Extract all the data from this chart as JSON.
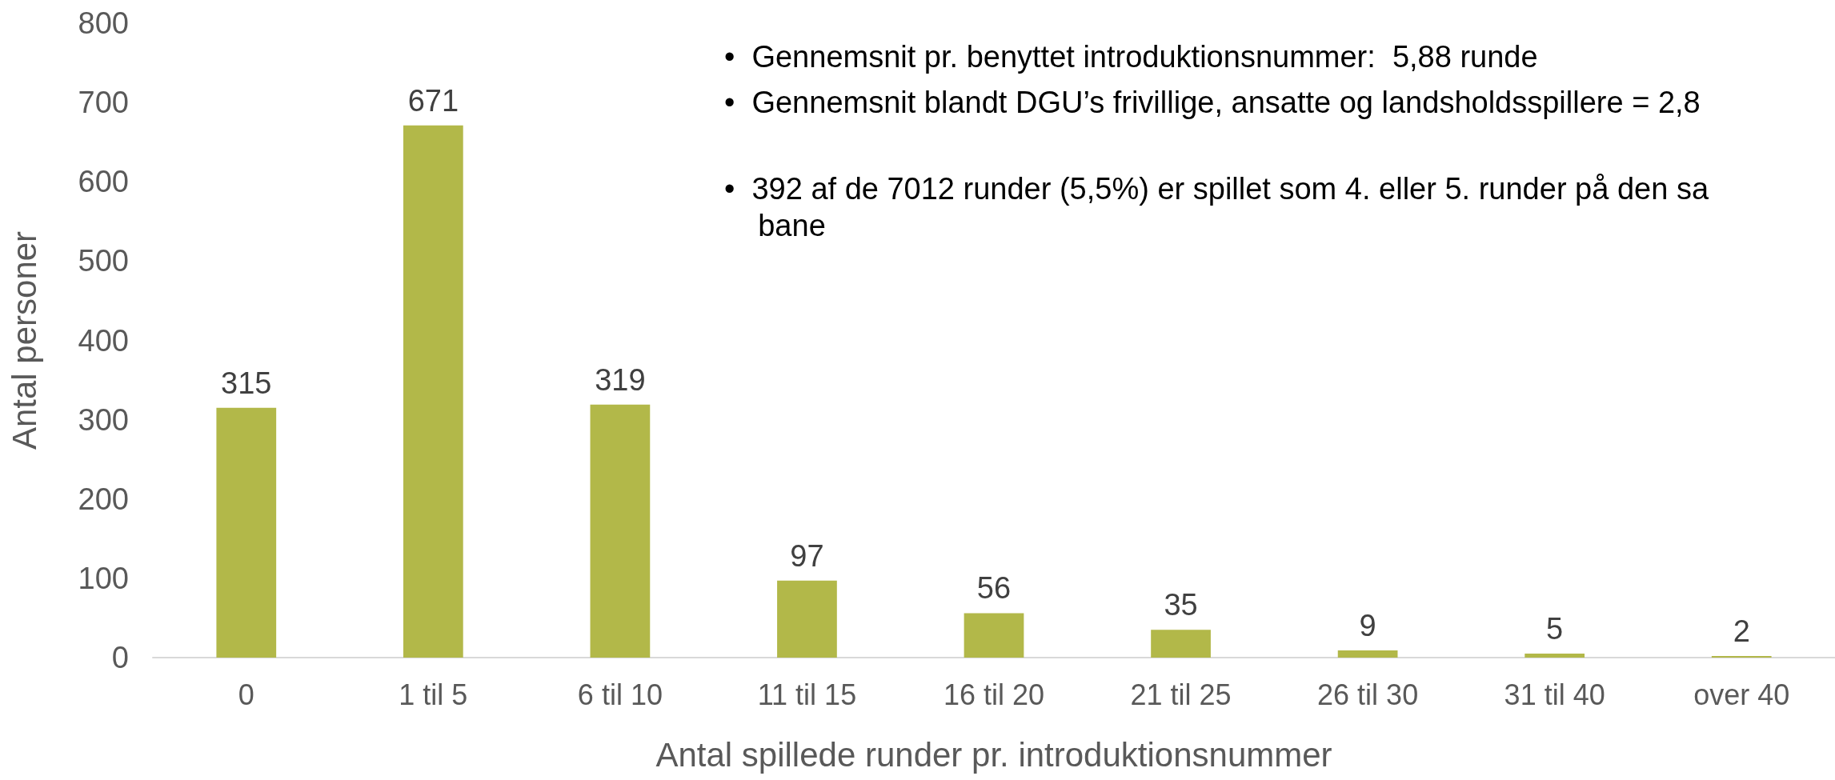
{
  "chart_data": {
    "type": "bar",
    "xlabel": "Antal spillede runder pr. introduktionsnummer",
    "ylabel": "Antal personer",
    "categories": [
      "0",
      "1 til 5",
      "6 til 10",
      "11 til 15",
      "16 til 20",
      "21 til 25",
      "26 til 30",
      "31 til 40",
      "over 40"
    ],
    "values": [
      315,
      671,
      319,
      97,
      56,
      35,
      9,
      5,
      2
    ],
    "color": "#b2b849",
    "ylim": [
      0,
      800
    ],
    "yticks": [
      0,
      100,
      200,
      300,
      400,
      500,
      600,
      700,
      800
    ],
    "grid": false,
    "data_labels": true,
    "annotations": [
      "•  Gennemsnit pr. benyttet introduktionsnummer:  5,88 runde",
      "•  Gennemsnit blandt DGU’s frivillige, ansatte og landsholdsspillere = 2,8",
      "•  392 af de 7012 runder (5,5%) er spillet som 4. eller 5. runder på den sa\n    bane"
    ]
  }
}
